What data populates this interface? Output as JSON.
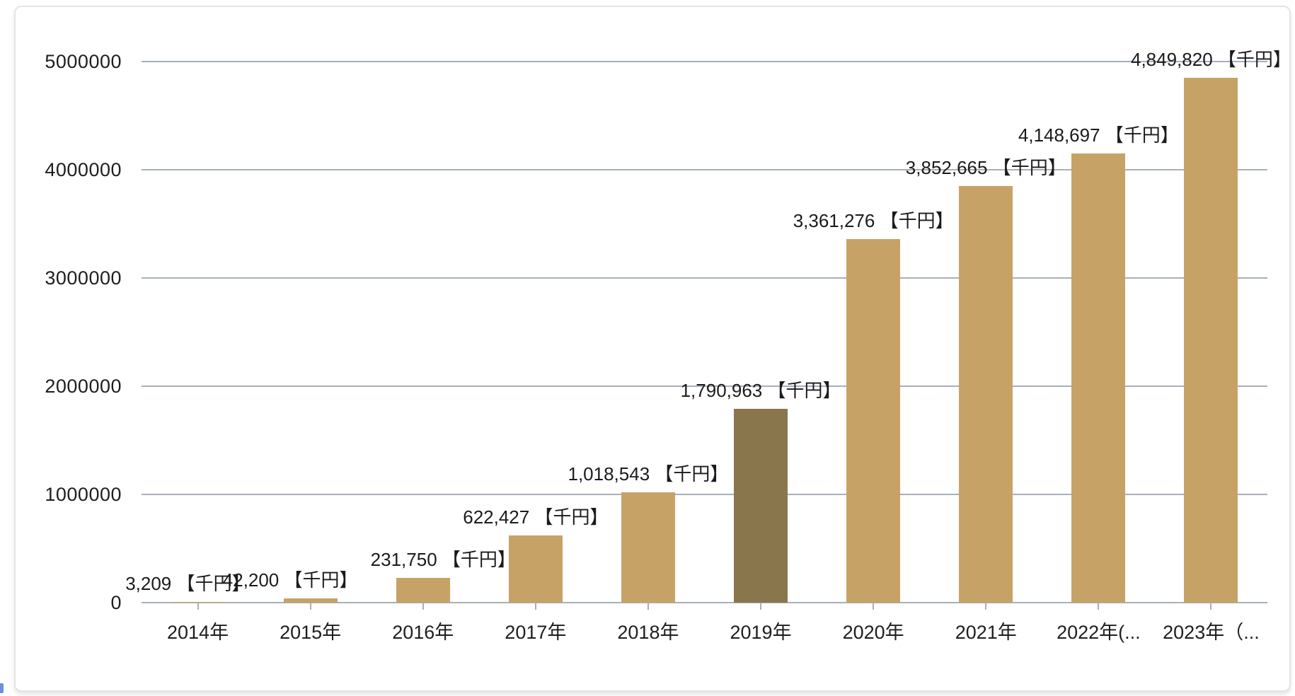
{
  "chart_data": {
    "type": "bar",
    "title": "",
    "xlabel": "",
    "ylabel": "",
    "unit": "千円",
    "categories": [
      "2014年",
      "2015年",
      "2016年",
      "2017年",
      "2018年",
      "2019年",
      "2020年",
      "2021年",
      "2022年(...",
      "2023年（..."
    ],
    "values": [
      3209,
      42200,
      231750,
      622427,
      1018543,
      1790963,
      3361276,
      3852665,
      4148697,
      4849820
    ],
    "value_labels": [
      "3,209 【千円】",
      "42,200 【千円】",
      "231,750 【千円】",
      "622,427 【千円】",
      "1,018,543 【千円】",
      "1,790,963 【千円】",
      "3,361,276 【千円】",
      "3,852,665 【千円】",
      "4,148,697 【千円】",
      "4,849,820 【千円】"
    ],
    "ylim": [
      0,
      5000000
    ],
    "y_ticks": [
      0,
      1000000,
      2000000,
      3000000,
      4000000,
      5000000
    ],
    "y_tick_labels": [
      "0",
      "1000000",
      "2000000",
      "3000000",
      "4000000",
      "5000000"
    ],
    "highlighted_index": 5,
    "grid": true,
    "legend": false,
    "colors": {
      "bar": "#c7a267",
      "bar_highlight": "#8a764d",
      "gridline": "#a7b0ba",
      "text": "#1e1e1e",
      "panel_border": "#e4e4e4",
      "blue_accent": "#6f8fd8"
    }
  }
}
